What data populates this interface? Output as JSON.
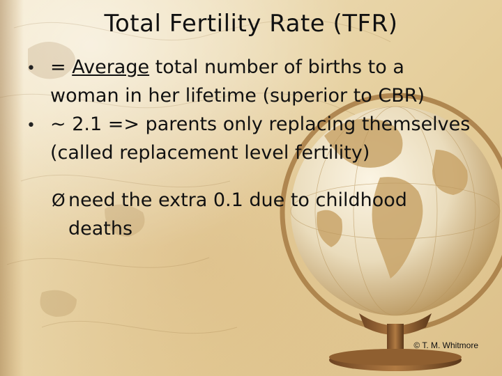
{
  "slide": {
    "title": "Total Fertility Rate (TFR)",
    "bullet_glyph": "•",
    "bullets": [
      {
        "prefix": "= ",
        "emphasis": "Average",
        "text": " total number of births to a woman in her lifetime (superior to CBR)"
      },
      {
        "text": "~ 2.1 => parents only replacing themselves (called replacement level fertility)"
      }
    ],
    "sub_bullet": {
      "glyph": "Ø",
      "text": "need the extra 0.1 due to childhood deaths"
    },
    "copyright": "© T. M. Whitmore"
  },
  "decor": {
    "background_icon": "antique-map-texture",
    "globe_icon": "desk-globe-icon",
    "colors": {
      "parchment": "#eadaa9",
      "globe_ocean": "#e8dcc0",
      "globe_land": "#c9a56a",
      "stand": "#9c6b3a"
    }
  }
}
